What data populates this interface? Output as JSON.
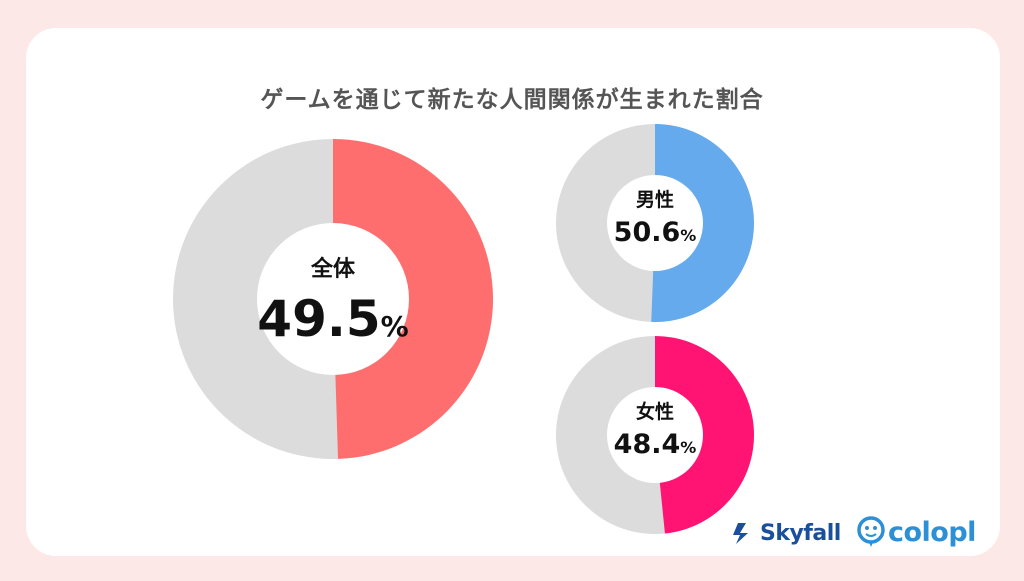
{
  "title": "ゲームを通じて新たな人間関係が生まれた割合",
  "colors": {
    "background": "#fce9e7",
    "track": "#dcdcdc",
    "overall": "#ff6e6e",
    "male": "#64aaec",
    "female": "#ff1474"
  },
  "chart_data": [
    {
      "type": "pie",
      "label": "全体",
      "value": 49.5,
      "value_text": "49.5",
      "unit": "%",
      "color": "#ff6e6e"
    },
    {
      "type": "pie",
      "label": "男性",
      "value": 50.6,
      "value_text": "50.6",
      "unit": "%",
      "color": "#64aaec"
    },
    {
      "type": "pie",
      "label": "女性",
      "value": 48.4,
      "value_text": "48.4",
      "unit": "%",
      "color": "#ff1474"
    }
  ],
  "logos": {
    "skyfall": "Skyfall",
    "colopl": "colopl"
  }
}
